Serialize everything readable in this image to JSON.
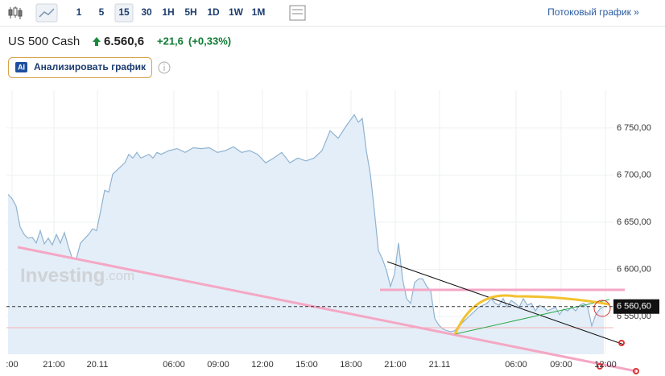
{
  "toolbar": {
    "intervals": [
      "1",
      "5",
      "15",
      "30",
      "1H",
      "5H",
      "1D",
      "1W",
      "1M"
    ],
    "streaming_link": "Потоковый график »"
  },
  "instrument": {
    "name": "US 500 Cash",
    "price": "6.560,6",
    "change": "+21,6",
    "change_pct": "(+0,33%)"
  },
  "ai_button": {
    "badge": "AI",
    "label": "Анализировать график"
  },
  "chart_data": {
    "type": "area",
    "watermark": "Investing",
    "watermark_suffix": ".com",
    "color": "#8fb3d1",
    "fill": "#e4eef8",
    "grid": true,
    "x": [
      2,
      3,
      4,
      5,
      6,
      7,
      8,
      9,
      10,
      11,
      12,
      13,
      14,
      15,
      16,
      17,
      18,
      19,
      20,
      22,
      23,
      24,
      25,
      26,
      27,
      28,
      29,
      30,
      31,
      32,
      33,
      34,
      35,
      36,
      37,
      38,
      39,
      40,
      42,
      44,
      46,
      48,
      50,
      52,
      54,
      56,
      58,
      60,
      62,
      64,
      66,
      68,
      70,
      72,
      74,
      76,
      78,
      80,
      82,
      84,
      86,
      88,
      89,
      90,
      91,
      92,
      93,
      94,
      95,
      96,
      97,
      98,
      99,
      100,
      101,
      102,
      103,
      104,
      105,
      106,
      107,
      108,
      109,
      110,
      111,
      112,
      113,
      114,
      115,
      116,
      117,
      118,
      119,
      120,
      121,
      122,
      123,
      124,
      125,
      126,
      127,
      128,
      129,
      130,
      131,
      132,
      133,
      134,
      135,
      136,
      137,
      138,
      139,
      140,
      141,
      142,
      143,
      144,
      145,
      146,
      147,
      148,
      149,
      150
    ],
    "values": [
      6679.5,
      6675,
      6667,
      6645,
      6637,
      6633,
      6634,
      6628,
      6641,
      6627,
      6633,
      6626,
      6637,
      6628,
      6639,
      6624,
      6611,
      6612,
      6628,
      6637,
      6643,
      6641,
      6662,
      6684,
      6682,
      6701,
      6705,
      6709,
      6713,
      6722,
      6718,
      6724,
      6718,
      6720,
      6722,
      6718,
      6724,
      6722,
      6726,
      6728,
      6724,
      6729,
      6728,
      6729,
      6724,
      6726,
      6730,
      6724,
      6726,
      6722,
      6713,
      6718,
      6724,
      6713,
      6718,
      6715,
      6718,
      6726,
      6747,
      6739,
      6752,
      6764,
      6756,
      6760,
      6726,
      6701,
      6662,
      6620,
      6611,
      6599,
      6582,
      6595,
      6628,
      6590,
      6569,
      6564,
      6586,
      6590,
      6590,
      6582,
      6577,
      6548,
      6541,
      6537,
      6535,
      6534,
      6535,
      6540,
      6544,
      6548,
      6552,
      6556,
      6560,
      6562,
      6564,
      6569,
      6564,
      6562,
      6569,
      6560,
      6567,
      6564,
      6560,
      6569,
      6562,
      6564,
      6556,
      6562,
      6560,
      6556,
      6558,
      6560,
      6552,
      6558,
      6556,
      6560,
      6556,
      6562,
      6564,
      6560,
      6540,
      6552,
      6558,
      6560.6
    ],
    "xlim": [
      1.6,
      152.4
    ],
    "xticks": [
      {
        "value": 3,
        "label": ":00"
      },
      {
        "value": 13.4,
        "label": "21:00"
      },
      {
        "value": 24.2,
        "label": "20.11"
      },
      {
        "value": 43.2,
        "label": "06:00"
      },
      {
        "value": 54.2,
        "label": "09:00"
      },
      {
        "value": 65.2,
        "label": "12:00"
      },
      {
        "value": 76.2,
        "label": "15:00"
      },
      {
        "value": 87.2,
        "label": "18:00"
      },
      {
        "value": 98.2,
        "label": "21:00"
      },
      {
        "value": 109.2,
        "label": "21.11"
      },
      {
        "value": 128.2,
        "label": "06:00"
      },
      {
        "value": 139.4,
        "label": "09:00"
      },
      {
        "value": 150.4,
        "label": "12:00"
      }
    ],
    "ylim": [
      6510,
      6790
    ],
    "yticks": [
      {
        "value": 6550,
        "label": "6 550,00"
      },
      {
        "value": 6600,
        "label": "6 600,00"
      },
      {
        "value": 6650,
        "label": "6 650,00"
      },
      {
        "value": 6700,
        "label": "6 700,00"
      },
      {
        "value": 6750,
        "label": "6 750,00"
      }
    ],
    "last_price": {
      "value": 6560.6,
      "label": "6 560,60"
    }
  }
}
